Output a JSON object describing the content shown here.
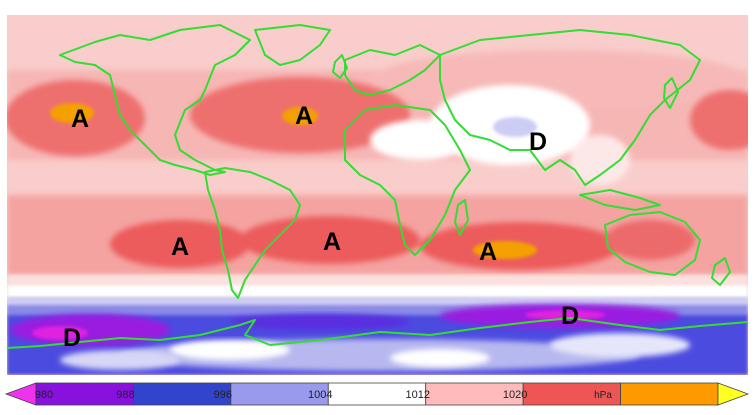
{
  "map": {
    "pressure_centers": [
      {
        "label": "A",
        "type": "high",
        "region": "north-pacific"
      },
      {
        "label": "A",
        "type": "high",
        "region": "north-atlantic"
      },
      {
        "label": "D",
        "type": "low",
        "region": "south-asia"
      },
      {
        "label": "A",
        "type": "high",
        "region": "south-pacific"
      },
      {
        "label": "A",
        "type": "high",
        "region": "south-atlantic"
      },
      {
        "label": "A",
        "type": "high",
        "region": "south-indian-ocean"
      },
      {
        "label": "D",
        "type": "low",
        "region": "southern-ocean-west"
      },
      {
        "label": "D",
        "type": "low",
        "region": "southern-ocean-east"
      }
    ],
    "coastline_color": "#33dd33"
  },
  "legend": {
    "unit": "hPa",
    "ticks": [
      "980",
      "988",
      "996",
      "1004",
      "1012",
      "1020"
    ],
    "bins": [
      {
        "color": "#ee33ee",
        "shape": "arrow-left"
      },
      {
        "color": "#8811dd"
      },
      {
        "color": "#3344cc"
      },
      {
        "color": "#9999ee"
      },
      {
        "color": "#ffffff"
      },
      {
        "color": "#ffbbbb"
      },
      {
        "color": "#ee5555"
      },
      {
        "color": "#ff9900"
      },
      {
        "color": "#ffff22",
        "shape": "arrow-right"
      }
    ]
  },
  "colors": {
    "pink": "#f9cdcb",
    "light_red": "#f4a3a1",
    "red": "#ec5b5b",
    "orange": "#f3a000",
    "white": "#ffffff",
    "light_blue": "#ccccf5",
    "blue": "#4c4ce0",
    "purple": "#9a1ee0",
    "magenta": "#e020e0"
  }
}
